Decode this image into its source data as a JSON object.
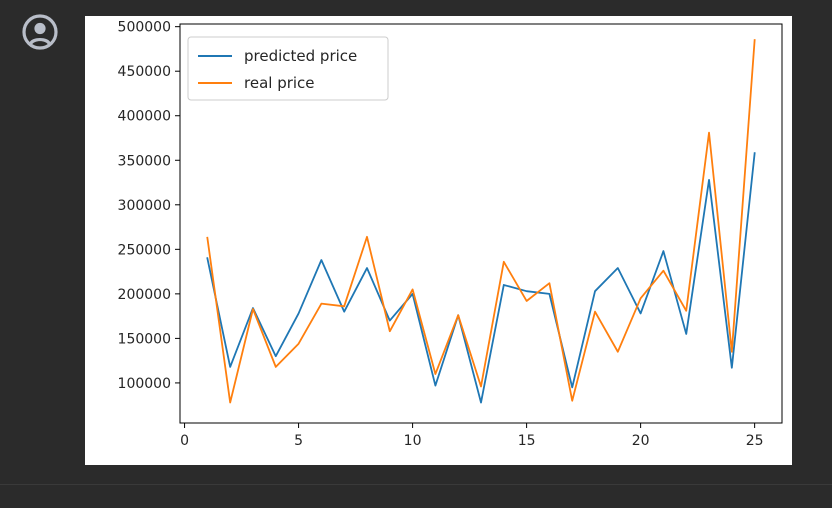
{
  "cell": {
    "avatar_icon": "user-circle-icon",
    "avatar_color": "#b9bec9"
  },
  "chart_data": {
    "type": "line",
    "title": "",
    "xlabel": "",
    "ylabel": "",
    "xlim": [
      -0.2,
      26.2
    ],
    "ylim": [
      55000,
      503000
    ],
    "x_ticks": [
      0,
      5,
      10,
      15,
      20,
      25
    ],
    "x_tick_labels": [
      "0",
      "5",
      "10",
      "15",
      "20",
      "25"
    ],
    "y_ticks": [
      100000,
      150000,
      200000,
      250000,
      300000,
      350000,
      400000,
      450000,
      500000
    ],
    "y_tick_labels": [
      "100000",
      "150000",
      "200000",
      "250000",
      "300000",
      "350000",
      "400000",
      "450000",
      "500000"
    ],
    "grid": false,
    "legend_position": "top-left",
    "x": [
      1,
      2,
      3,
      4,
      5,
      6,
      7,
      8,
      9,
      10,
      11,
      12,
      13,
      14,
      15,
      16,
      17,
      18,
      19,
      20,
      21,
      22,
      23,
      24,
      25
    ],
    "series": [
      {
        "name": "predicted price",
        "color": "#1f77b4",
        "values": [
          240000,
          118000,
          184000,
          130000,
          178000,
          238000,
          180000,
          229000,
          170000,
          200000,
          97000,
          176000,
          78000,
          210000,
          203000,
          200000,
          95000,
          203000,
          229000,
          178000,
          248000,
          155000,
          328000,
          117000,
          358000
        ]
      },
      {
        "name": "real price",
        "color": "#ff7f0e",
        "values": [
          263000,
          78000,
          183000,
          118000,
          144000,
          189000,
          186000,
          264000,
          158000,
          205000,
          110000,
          176000,
          96000,
          236000,
          192000,
          212000,
          80000,
          180000,
          135000,
          195000,
          226000,
          181000,
          381000,
          135000,
          485000
        ]
      }
    ]
  }
}
